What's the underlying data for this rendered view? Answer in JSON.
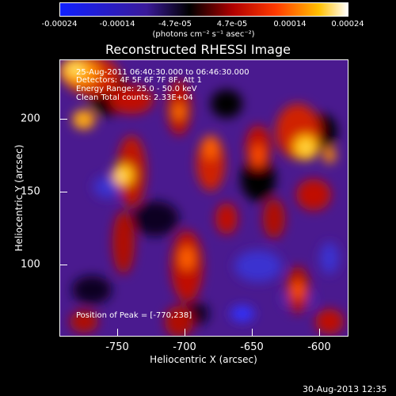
{
  "colorbar": {
    "labels": [
      "-0.00024",
      "-0.00014",
      "-4.7e-05",
      "4.7e-05",
      "0.00014",
      "0.00024"
    ],
    "unit": "(photons cm⁻² s⁻¹ asec⁻²)"
  },
  "title": "Reconstructed RHESSI Image",
  "info": {
    "time": "25-Aug-2011 06:40:30.000 to 06:46:30.000",
    "detectors": "Detectors: 4F 5F 6F 7F 8F, Att 1",
    "energy": "Energy Range: 25.0 - 50.0 keV",
    "method": "Clean    Total counts: 2.33E+04",
    "peak": "Position of Peak = [-770,238]"
  },
  "axes": {
    "xlabel": "Heliocentric X (arcsec)",
    "ylabel": "Heliocentric Y (arcsec)",
    "xticks": [
      "-750",
      "-700",
      "-650",
      "-600"
    ],
    "yticks": [
      "200",
      "150",
      "100"
    ]
  },
  "timestamp": "30-Aug-2013 12:35"
}
